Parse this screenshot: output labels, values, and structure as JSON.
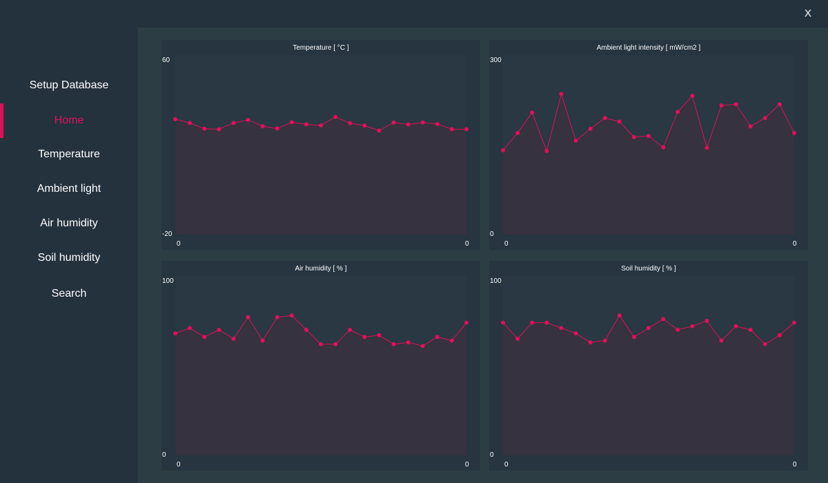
{
  "window": {
    "close_label": "X"
  },
  "sidebar": {
    "items": [
      {
        "label": "Setup Database",
        "active": false
      },
      {
        "label": "Home",
        "active": true
      },
      {
        "label": "Temperature",
        "active": false
      },
      {
        "label": "Ambient light",
        "active": false
      },
      {
        "label": "Air humidity",
        "active": false
      },
      {
        "label": "Soil humidity",
        "active": false
      },
      {
        "label": "Search",
        "active": false
      }
    ]
  },
  "colors": {
    "accent": "#e0105a",
    "background": "#24323e",
    "main_background": "#2c3e44",
    "panel_background": "#263540",
    "plot_area": "#293843",
    "area_fill": "#36323f"
  },
  "chart_data": [
    {
      "type": "area",
      "title": "Temperature [ °C ]",
      "ylim": [
        -20,
        60
      ],
      "y_tick_labels": [
        "60",
        "-20"
      ],
      "x_tick_labels": [
        "0",
        "0"
      ],
      "values": [
        31.5,
        29.8,
        27.2,
        27.0,
        29.8,
        31.2,
        28.3,
        27.3,
        30.1,
        29.2,
        28.7,
        32.5,
        29.7,
        28.6,
        26.4,
        30.0,
        29.1,
        30.0,
        29.3,
        27.0,
        27.0
      ]
    },
    {
      "type": "area",
      "title": "Ambient light intensity [ mW/cm2 ]",
      "ylim": [
        0,
        300
      ],
      "y_tick_labels": [
        "300",
        "0"
      ],
      "x_tick_labels": [
        "0",
        "0"
      ],
      "values": [
        141,
        170,
        204,
        140,
        235,
        157,
        177,
        195,
        189,
        163,
        165,
        146,
        205,
        232,
        145,
        216,
        218,
        181,
        195,
        218,
        170
      ]
    },
    {
      "type": "area",
      "title": "Air humidity [ % ]",
      "ylim": [
        0,
        100
      ],
      "y_tick_labels": [
        "100",
        "0"
      ],
      "x_tick_labels": [
        "0",
        "0"
      ],
      "values": [
        68,
        71,
        66,
        70,
        65,
        77,
        64,
        77,
        78,
        70,
        62,
        62,
        70,
        66,
        67,
        62,
        63,
        61,
        66,
        64,
        74
      ]
    },
    {
      "type": "area",
      "title": "Soil humidity [ % ]",
      "ylim": [
        0,
        100
      ],
      "y_tick_labels": [
        "100",
        "0"
      ],
      "x_tick_labels": [
        "0",
        "0"
      ],
      "values": [
        74,
        65,
        74,
        74,
        71,
        68,
        63,
        64,
        78,
        66,
        71,
        76,
        70,
        72,
        75,
        64,
        72,
        70,
        62,
        67,
        74
      ]
    }
  ]
}
